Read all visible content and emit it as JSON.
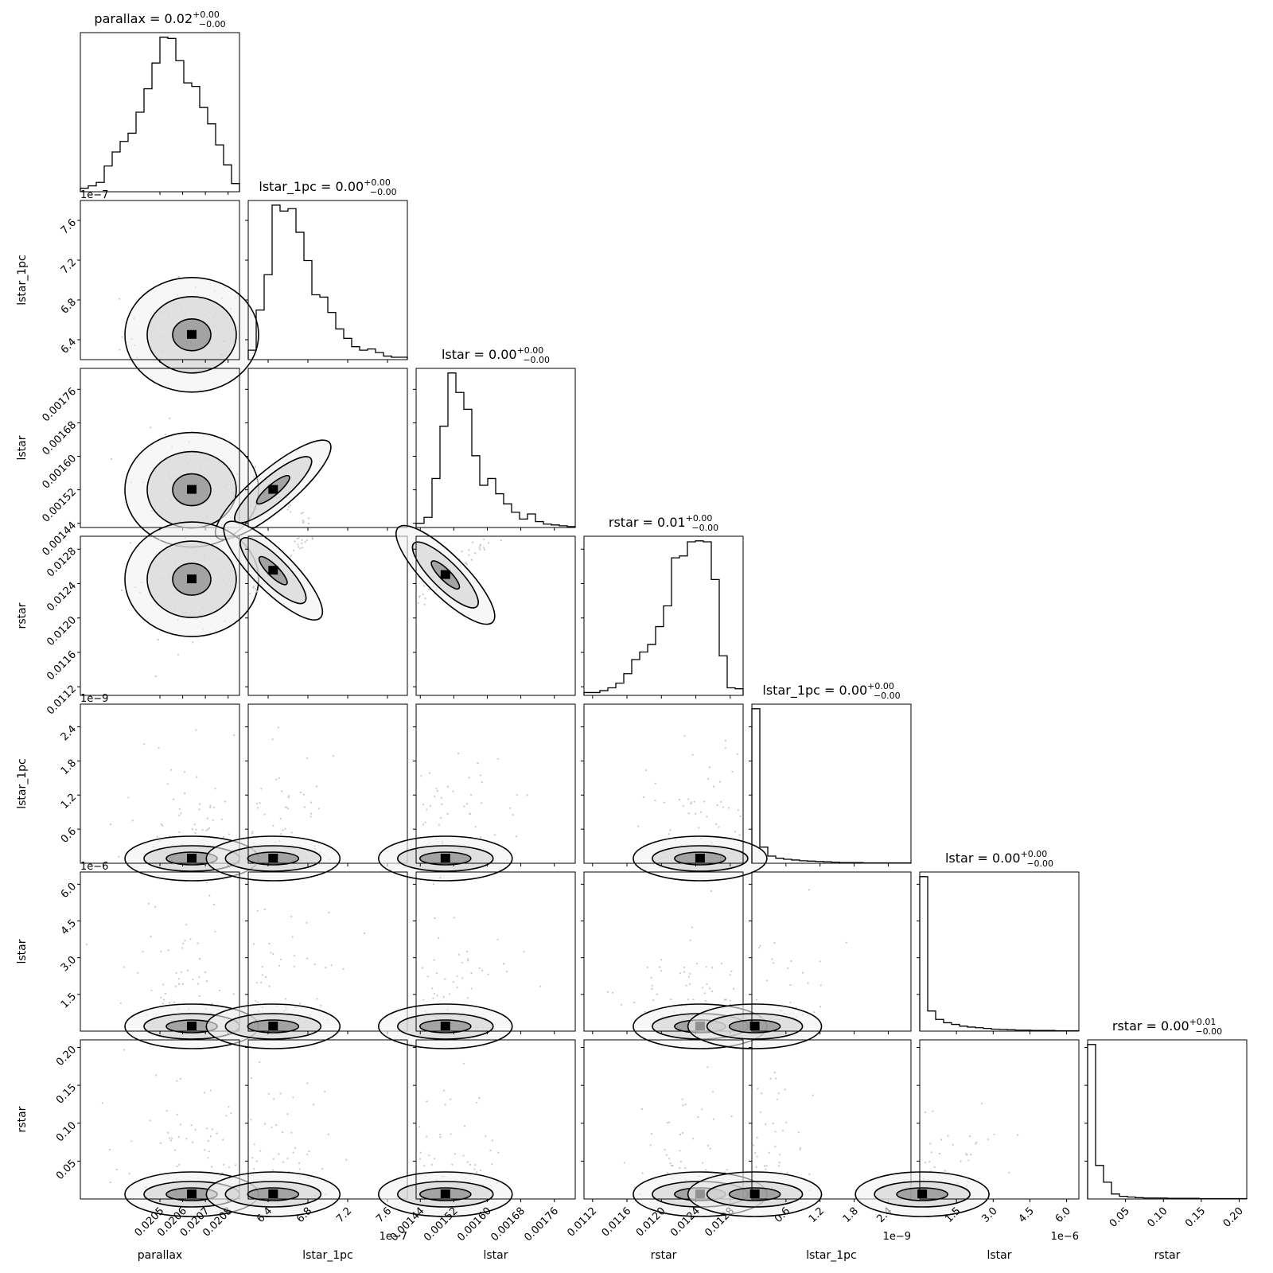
{
  "chart_data": {
    "type": "corner",
    "parameters": [
      "parallax",
      "lstar_1pc",
      "lstar",
      "rstar",
      "lstar_1pc",
      "lstar",
      "rstar"
    ],
    "titles": [
      {
        "name": "parallax",
        "value": "0.02",
        "plus": "+0.00",
        "minus": "−0.00"
      },
      {
        "name": "lstar_1pc",
        "value": "0.00",
        "plus": "+0.00",
        "minus": "−0.00"
      },
      {
        "name": "lstar",
        "value": "0.00",
        "plus": "+0.00",
        "minus": "−0.00"
      },
      {
        "name": "rstar",
        "value": "0.01",
        "plus": "+0.00",
        "minus": "−0.00"
      },
      {
        "name": "lstar_1pc",
        "value": "0.00",
        "plus": "+0.00",
        "minus": "−0.00"
      },
      {
        "name": "lstar",
        "value": "0.00",
        "plus": "+0.00",
        "minus": "−0.00"
      },
      {
        "name": "rstar",
        "value": "0.00",
        "plus": "+0.01",
        "minus": "−0.00"
      }
    ],
    "axes": [
      {
        "label": "parallax",
        "range": [
          0.02015,
          0.02085
        ],
        "ticks": [
          0.0205,
          0.0206,
          0.0207,
          0.0208
        ],
        "tick_labels": [
          "0.0205",
          "0.0206",
          "0.0207",
          "0.0208"
        ],
        "offset": ""
      },
      {
        "label": "lstar_1pc",
        "range": [
          6.2,
          7.8
        ],
        "ticks": [
          6.4,
          6.8,
          7.2,
          7.6
        ],
        "tick_labels": [
          "6.4",
          "6.8",
          "7.2",
          "7.6"
        ],
        "offset": "1e−7"
      },
      {
        "label": "lstar",
        "range": [
          0.00143,
          0.00181
        ],
        "ticks": [
          0.00144,
          0.00152,
          0.0016,
          0.00168,
          0.00176
        ],
        "tick_labels": [
          "0.00144",
          "0.00152",
          "0.00160",
          "0.00168",
          "0.00176"
        ],
        "offset": ""
      },
      {
        "label": "rstar",
        "range": [
          0.0111,
          0.01295
        ],
        "ticks": [
          0.0112,
          0.0116,
          0.012,
          0.0124,
          0.0128
        ],
        "tick_labels": [
          "0.0112",
          "0.0116",
          "0.0120",
          "0.0124",
          "0.0128"
        ],
        "offset": ""
      },
      {
        "label": "lstar_1pc",
        "range": [
          0.0,
          2.8
        ],
        "ticks": [
          0.6,
          1.2,
          1.8,
          2.4
        ],
        "tick_labels": [
          "0.6",
          "1.2",
          "1.8",
          "2.4"
        ],
        "offset": "1e−9"
      },
      {
        "label": "lstar",
        "range": [
          0.0,
          6.5
        ],
        "ticks": [
          1.5,
          3.0,
          4.5,
          6.0
        ],
        "tick_labels": [
          "1.5",
          "3.0",
          "4.5",
          "6.0"
        ],
        "offset": "1e−6"
      },
      {
        "label": "rstar",
        "range": [
          0.0,
          0.21
        ],
        "ticks": [
          0.05,
          0.1,
          0.15,
          0.2
        ],
        "tick_labels": [
          "0.05",
          "0.10",
          "0.15",
          "0.20"
        ],
        "offset": ""
      }
    ],
    "histograms": [
      [
        3,
        5,
        8,
        22,
        34,
        43,
        50,
        68,
        88,
        110,
        132,
        131,
        112,
        93,
        90,
        72,
        58,
        40,
        23,
        7
      ],
      [
        8,
        42,
        72,
        131,
        126,
        128,
        108,
        84,
        55,
        53,
        40,
        26,
        18,
        11,
        8,
        9,
        6,
        3,
        2,
        2
      ],
      [
        5,
        12,
        58,
        120,
        183,
        160,
        140,
        85,
        50,
        58,
        40,
        28,
        18,
        10,
        16,
        7,
        4,
        3,
        2,
        1
      ],
      [
        3,
        3,
        5,
        8,
        13,
        23,
        38,
        46,
        54,
        73,
        95,
        146,
        148,
        163,
        164,
        163,
        123,
        42,
        8,
        7
      ],
      [
        430,
        45,
        20,
        14,
        11,
        9,
        7,
        6,
        5,
        4,
        3,
        2,
        2,
        2,
        1,
        1,
        1,
        1,
        1,
        1
      ],
      [
        460,
        60,
        35,
        25,
        20,
        15,
        12,
        10,
        8,
        6,
        5,
        4,
        3,
        3,
        2,
        2,
        2,
        1,
        1,
        1
      ],
      [
        460,
        100,
        50,
        15,
        8,
        6,
        4,
        3,
        3,
        3,
        2,
        2,
        2,
        2,
        1,
        1,
        1,
        1,
        1,
        1
      ]
    ],
    "density_peaks": [
      {
        "row": 1,
        "col": 0,
        "x": 0.02064,
        "y": 6.45
      },
      {
        "row": 2,
        "col": 0,
        "x": 0.02064,
        "y": 0.00152
      },
      {
        "row": 2,
        "col": 1,
        "x": 6.45,
        "y": 0.00152
      },
      {
        "row": 3,
        "col": 0,
        "x": 0.02064,
        "y": 0.01245
      },
      {
        "row": 3,
        "col": 1,
        "x": 6.45,
        "y": 0.01255
      },
      {
        "row": 3,
        "col": 2,
        "x": 0.0015,
        "y": 0.0125
      },
      {
        "row": 4,
        "col": 0,
        "x": 0.02064,
        "y": 0.05
      },
      {
        "row": 4,
        "col": 1,
        "x": 6.45,
        "y": 0.05
      },
      {
        "row": 4,
        "col": 2,
        "x": 0.0015,
        "y": 0.05
      },
      {
        "row": 4,
        "col": 3,
        "x": 0.01245,
        "y": 0.05
      },
      {
        "row": 5,
        "col": 0,
        "x": 0.02064,
        "y": 0.1
      },
      {
        "row": 5,
        "col": 1,
        "x": 6.45,
        "y": 0.1
      },
      {
        "row": 5,
        "col": 2,
        "x": 0.0015,
        "y": 0.1
      },
      {
        "row": 5,
        "col": 3,
        "x": 0.01245,
        "y": 0.1
      },
      {
        "row": 5,
        "col": 4,
        "x": 0.05,
        "y": 0.1
      },
      {
        "row": 6,
        "col": 0,
        "x": 0.02064,
        "y": 0.004
      },
      {
        "row": 6,
        "col": 1,
        "x": 6.45,
        "y": 0.004
      },
      {
        "row": 6,
        "col": 2,
        "x": 0.0015,
        "y": 0.004
      },
      {
        "row": 6,
        "col": 3,
        "x": 0.01245,
        "y": 0.004
      },
      {
        "row": 6,
        "col": 4,
        "x": 0.05,
        "y": 0.004
      },
      {
        "row": 6,
        "col": 5,
        "x": 0.1,
        "y": 0.004
      }
    ],
    "colors": {
      "line": "#000000",
      "scatter": "#c8c8c8",
      "density_dark": "#000000"
    },
    "grid": false,
    "legend": "none"
  }
}
